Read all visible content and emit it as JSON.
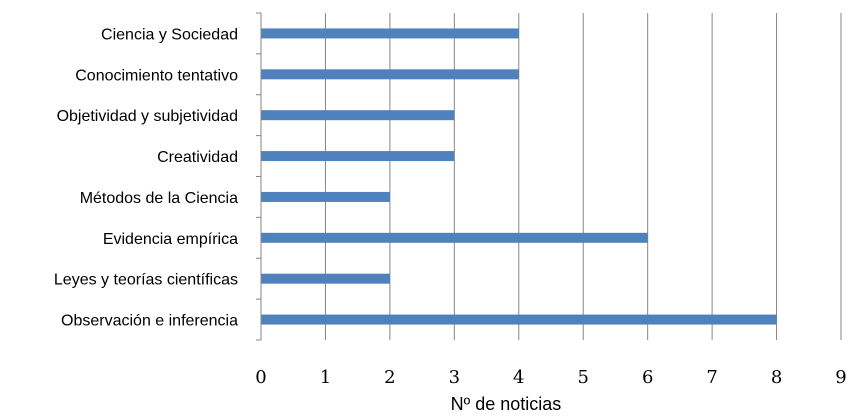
{
  "chart_data": {
    "type": "bar",
    "orientation": "horizontal",
    "categories": [
      "Ciencia y Sociedad",
      "Conocimiento tentativo",
      "Objetividad y subjetividad",
      "Creatividad",
      "Métodos de la Ciencia",
      "Evidencia empírica",
      "Leyes y teorías científicas",
      "Observación e inferencia"
    ],
    "values": [
      4,
      4,
      3,
      3,
      2,
      6,
      2,
      8
    ],
    "xlabel": "Nº de noticias",
    "ylabel": "",
    "xlim": [
      0,
      9
    ],
    "xticks": [
      "0",
      "1",
      "2",
      "3",
      "4",
      "5",
      "6",
      "7",
      "8",
      "9"
    ],
    "grid": "vertical",
    "legend": "none",
    "colors": {
      "bar": "#4f81bd",
      "grid": "#868686",
      "axis": "#868686"
    }
  }
}
